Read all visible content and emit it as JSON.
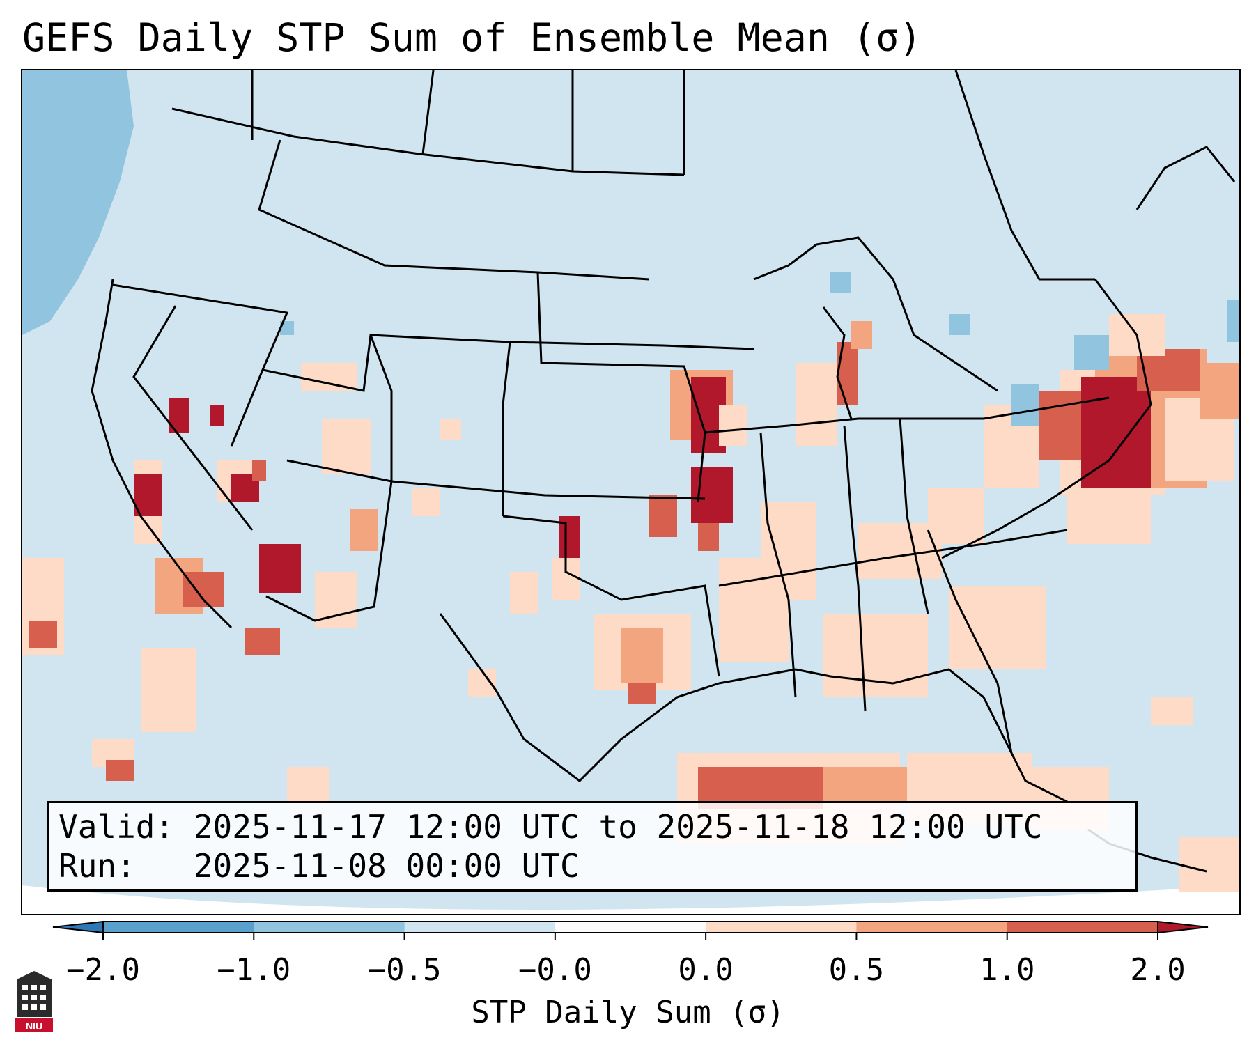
{
  "title": "GEFS Daily STP Sum of Ensemble Mean (σ)",
  "info": {
    "valid": "Valid: 2025-11-17 12:00 UTC to 2025-11-18 12:00 UTC",
    "run": "Run:   2025-11-08 00:00 UTC"
  },
  "colorbar": {
    "label": "STP Daily Sum (σ)",
    "ticks": [
      "−2.0",
      "−1.0",
      "−0.5",
      "−0.0",
      "0.0",
      "0.5",
      "1.0",
      "2.0"
    ],
    "colors": [
      "#2f78b6",
      "#5aa0cd",
      "#91c4de",
      "#d1e5f0",
      "#fbfbfb",
      "#fddbc7",
      "#f2a57f",
      "#d6604d",
      "#b2182b"
    ]
  },
  "colors": {
    "background_field": "#d1e5f0",
    "light_blue": "#91c4de",
    "light_red": "#fddbc7",
    "mid_red": "#f2a57f",
    "red": "#d6604d",
    "dark_red": "#b2182b"
  },
  "map_regions": [
    {
      "name": "northeast-maximum",
      "level": "dark_red"
    },
    {
      "name": "iowa-missouri-maximum",
      "level": "dark_red"
    },
    {
      "name": "gulf-of-mexico-moderate",
      "level": "red"
    },
    {
      "name": "southwest-scattered",
      "level": "light_red"
    },
    {
      "name": "pacific-negative",
      "level": "light_blue"
    }
  ],
  "logo": {
    "text": "NIU"
  }
}
